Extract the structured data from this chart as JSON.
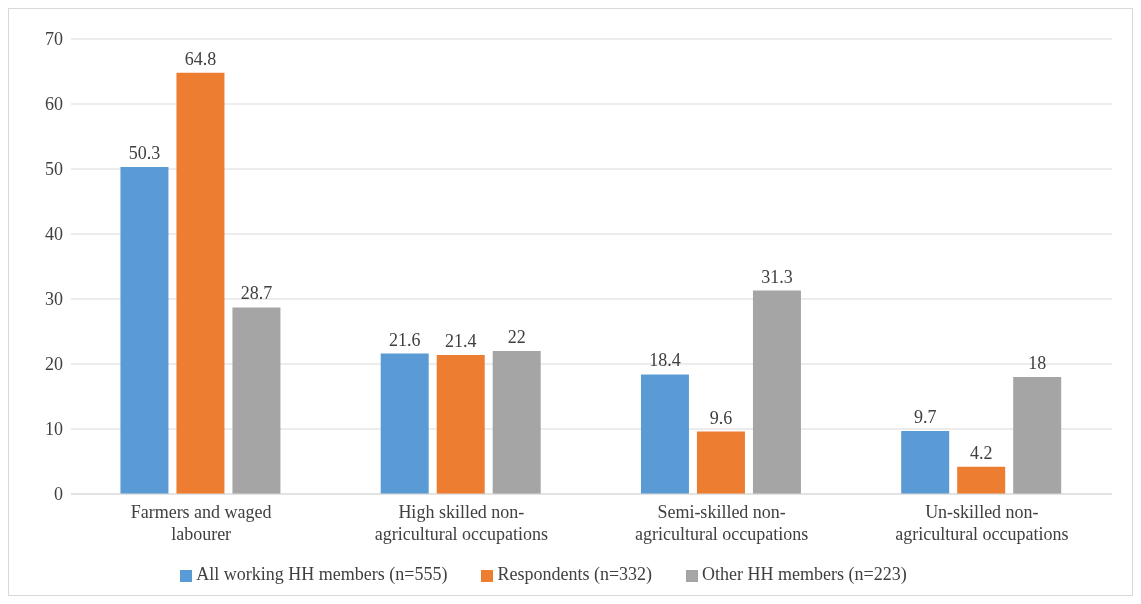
{
  "chart_data": {
    "type": "bar",
    "categories": [
      "Farmers and waged labourer",
      "High skilled non-agricultural occupations",
      "Semi-skilled non-agricultural occupations",
      "Un-skilled non-agricultural occupations"
    ],
    "series": [
      {
        "name": "All working HH members (n=555)",
        "color": "#5b9bd5",
        "values": [
          50.3,
          21.6,
          18.4,
          9.7
        ]
      },
      {
        "name": "Respondents (n=332)",
        "color": "#ed7d31",
        "values": [
          64.8,
          21.4,
          9.6,
          4.2
        ]
      },
      {
        "name": "Other HH members (n=223)",
        "color": "#a5a5a5",
        "values": [
          28.7,
          22,
          31.3,
          18
        ]
      }
    ],
    "ylim": [
      0,
      70
    ],
    "yticks": [
      0,
      10,
      20,
      30,
      40,
      50,
      60,
      70
    ],
    "grid": "y",
    "legend": "bottom",
    "data_labels": true
  }
}
